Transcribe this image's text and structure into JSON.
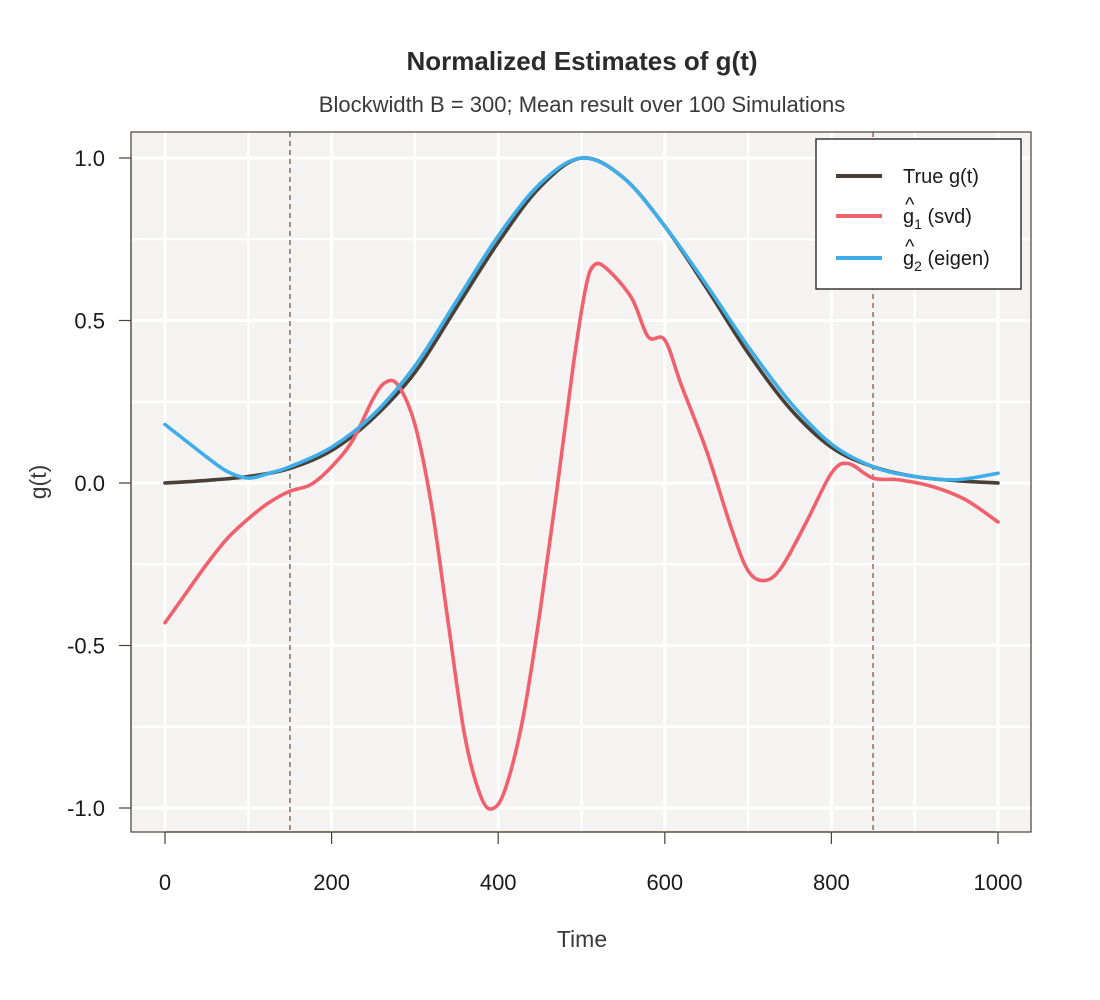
{
  "chart_data": {
    "type": "line",
    "title": "Normalized Estimates of g(t)",
    "subtitle": "Blockwidth B = 300; Mean result over 100 Simulations",
    "xlabel": "Time",
    "ylabel": "g(t)",
    "xlim": [
      0,
      1000
    ],
    "ylim": [
      -1.0,
      1.0
    ],
    "x_ticks": [
      0,
      200,
      400,
      600,
      800,
      1000
    ],
    "x_tick_labels": [
      "0",
      "200",
      "400",
      "600",
      "800",
      "1000"
    ],
    "y_ticks": [
      -1.0,
      -0.5,
      0.0,
      0.5,
      1.0
    ],
    "y_tick_labels": [
      "-1.0",
      "-0.5",
      "0.0",
      "0.5",
      "1.0"
    ],
    "grid": true,
    "background": "#f5f3f2",
    "vertical_reference_lines": [
      150,
      850
    ],
    "reference_line_color": "#8a6f5f",
    "legend": {
      "position": "top-right",
      "entries": [
        {
          "label": "True g(t)",
          "series": "true"
        },
        {
          "label_hat": "^",
          "label_main": "g",
          "label_sub": "1",
          "label_rest": " (svd)",
          "series": "svd"
        },
        {
          "label_hat": "^",
          "label_main": "g",
          "label_sub": "2",
          "label_rest": " (eigen)",
          "series": "eigen"
        }
      ]
    },
    "series": [
      {
        "id": "true",
        "color": "#4a3f35",
        "x": [
          0,
          50,
          100,
          150,
          200,
          250,
          300,
          350,
          400,
          450,
          500,
          550,
          600,
          650,
          700,
          750,
          800,
          850,
          900,
          950,
          1000
        ],
        "y": [
          0.0,
          0.008,
          0.02,
          0.045,
          0.1,
          0.2,
          0.34,
          0.54,
          0.74,
          0.91,
          1.0,
          0.94,
          0.79,
          0.6,
          0.4,
          0.23,
          0.11,
          0.05,
          0.02,
          0.007,
          0.0
        ]
      },
      {
        "id": "svd",
        "color": "#f0616d",
        "x": [
          0,
          25,
          50,
          75,
          100,
          125,
          150,
          175,
          200,
          225,
          250,
          265,
          280,
          300,
          320,
          340,
          360,
          380,
          395,
          410,
          430,
          450,
          470,
          490,
          505,
          515,
          530,
          560,
          580,
          600,
          620,
          650,
          680,
          700,
          720,
          740,
          770,
          800,
          820,
          850,
          880,
          920,
          960,
          1000
        ],
        "y": [
          -0.43,
          -0.34,
          -0.25,
          -0.17,
          -0.11,
          -0.06,
          -0.025,
          -0.005,
          0.05,
          0.13,
          0.26,
          0.31,
          0.3,
          0.18,
          -0.07,
          -0.43,
          -0.78,
          -0.97,
          -1.0,
          -0.93,
          -0.72,
          -0.4,
          -0.03,
          0.36,
          0.6,
          0.67,
          0.66,
          0.57,
          0.45,
          0.44,
          0.3,
          0.1,
          -0.14,
          -0.27,
          -0.3,
          -0.26,
          -0.12,
          0.03,
          0.06,
          0.015,
          0.01,
          -0.01,
          -0.05,
          -0.12
        ]
      },
      {
        "id": "eigen",
        "color": "#3daee9",
        "x": [
          0,
          25,
          50,
          75,
          100,
          125,
          150,
          200,
          250,
          300,
          350,
          400,
          450,
          500,
          550,
          600,
          650,
          700,
          750,
          800,
          850,
          900,
          950,
          1000
        ],
        "y": [
          0.18,
          0.13,
          0.08,
          0.035,
          0.015,
          0.03,
          0.05,
          0.11,
          0.21,
          0.36,
          0.56,
          0.76,
          0.92,
          1.0,
          0.94,
          0.79,
          0.61,
          0.42,
          0.25,
          0.12,
          0.05,
          0.02,
          0.01,
          0.03
        ]
      }
    ]
  }
}
